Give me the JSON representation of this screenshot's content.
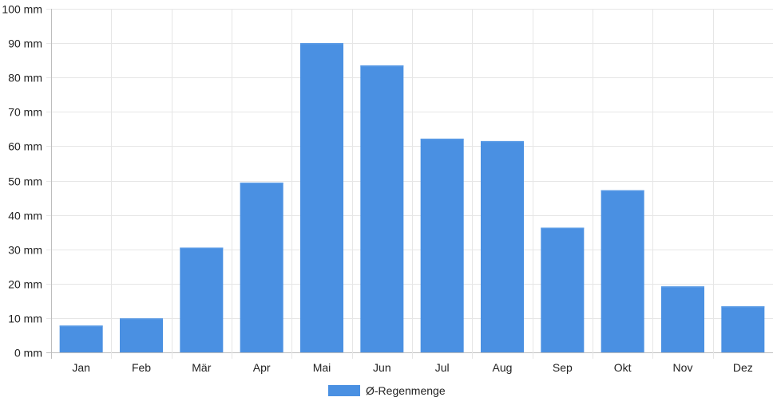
{
  "chart_data": {
    "type": "bar",
    "categories": [
      "Jan",
      "Feb",
      "Mär",
      "Apr",
      "Mai",
      "Jun",
      "Jul",
      "Aug",
      "Sep",
      "Okt",
      "Nov",
      "Dez"
    ],
    "series": [
      {
        "name": "Ø-Regenmenge",
        "color": "#4a90e2",
        "values": [
          7.8,
          9.9,
          30.5,
          49.4,
          90.0,
          83.5,
          62.2,
          61.5,
          36.3,
          47.2,
          19.2,
          13.4
        ]
      }
    ],
    "yticks": [
      "0 mm",
      "10 mm",
      "20 mm",
      "30 mm",
      "40 mm",
      "50 mm",
      "60 mm",
      "70 mm",
      "80 mm",
      "90 mm",
      "100 mm"
    ],
    "ylim": [
      0,
      100
    ],
    "grid": true,
    "legend": "bottom-center"
  }
}
